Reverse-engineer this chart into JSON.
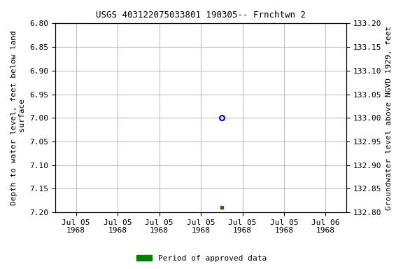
{
  "title": "USGS 403122075033801 190305-- Frnchtwn 2",
  "ylabel_left": "Depth to water level, feet below land\n surface",
  "ylabel_right": "Groundwater level above NGVD 1929, feet",
  "ylim_left": [
    6.8,
    7.2
  ],
  "ylim_right": [
    132.8,
    133.2
  ],
  "yticks_left": [
    6.8,
    6.85,
    6.9,
    6.95,
    7.0,
    7.05,
    7.1,
    7.15,
    7.2
  ],
  "yticks_right": [
    132.8,
    132.85,
    132.9,
    132.95,
    133.0,
    133.05,
    133.1,
    133.15,
    133.2
  ],
  "data_point_blue_x": 3.5,
  "data_point_blue_y": 7.0,
  "data_point_green_x": 3.5,
  "data_point_green_y": 7.19,
  "xlim": [
    -0.5,
    6.5
  ],
  "xtick_positions": [
    0,
    1,
    2,
    3,
    4,
    5,
    6
  ],
  "xtick_labels": [
    "Jul 05\n1968",
    "Jul 05\n1968",
    "Jul 05\n1968",
    "Jul 05\n1968",
    "Jul 05\n1968",
    "Jul 05\n1968",
    "Jul 06\n1968"
  ],
  "legend_label": "Period of approved data",
  "legend_color": "#008000",
  "bg_color": "#ffffff",
  "grid_color": "#c0c0c0",
  "font_family": "monospace",
  "title_fontsize": 9,
  "tick_fontsize": 8,
  "label_fontsize": 8
}
